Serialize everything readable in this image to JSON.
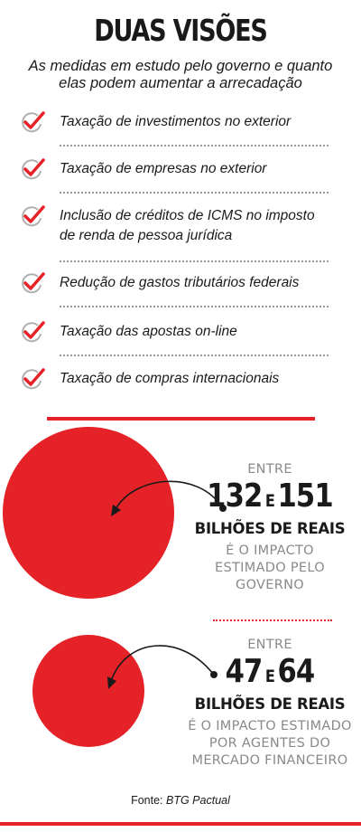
{
  "title": "DUAS VISÕES",
  "subtitle_line1": "As medidas em estudo pelo governo e quanto",
  "subtitle_line2": "elas podem aumentar a arrecadação",
  "measures": [
    {
      "line1": "Taxação de investimentos no exterior",
      "line2": ""
    },
    {
      "line1": "Taxação de empresas no exterior",
      "line2": ""
    },
    {
      "line1": "Inclusão de créditos de ICMS no imposto",
      "line2": "de renda de pessoa jurídica"
    },
    {
      "line1": "Redução de gastos tributários federais",
      "line2": ""
    },
    {
      "line1": "Taxação das apostas on-line",
      "line2": ""
    },
    {
      "line1": "Taxação de compras internacionais",
      "line2": ""
    }
  ],
  "government": {
    "entre": "ENTRE",
    "low": "132",
    "conj": "E",
    "high": "151",
    "unit": "BILHÕES DE REAIS",
    "desc1": "É O IMPACTO",
    "desc2": "ESTIMADO PELO",
    "desc3": "GOVERNO"
  },
  "market": {
    "entre": "ENTRE",
    "low": "47",
    "conj": "E",
    "high": "64",
    "unit": "BILHÕES DE REAIS",
    "desc1": "É O IMPACTO ESTIMADO",
    "desc2": "POR AGENTES DO",
    "desc3": "MERCADO FINANCEIRO"
  },
  "source_label": "Fonte:",
  "source_name": "BTG Pactual",
  "colors": {
    "accent": "#e42227",
    "text": "#1a1a1a",
    "muted": "#8a8a8a"
  }
}
